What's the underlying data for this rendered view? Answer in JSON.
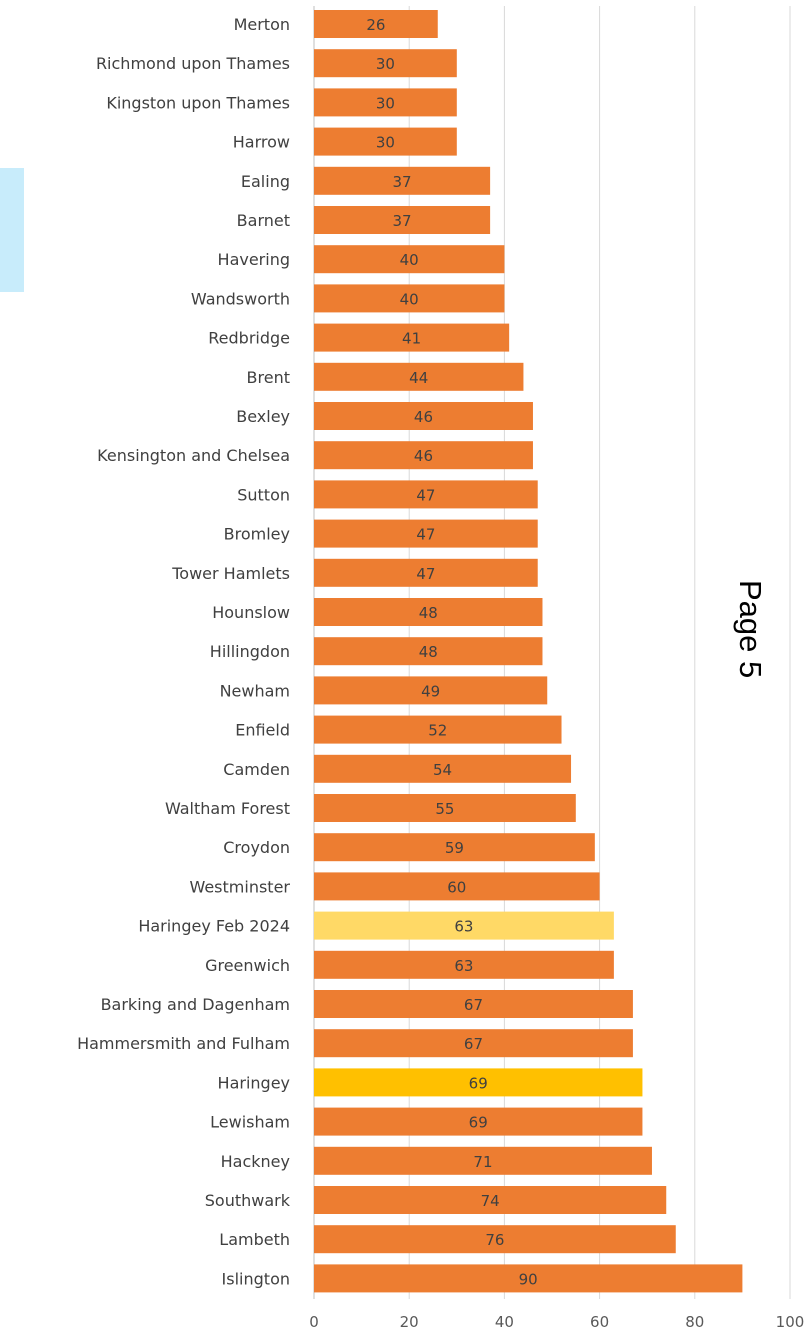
{
  "page": {
    "page_number": "Page 5"
  },
  "colors": {
    "bar_default": "#ed7d31",
    "bar_haringey": "#ffc000",
    "bar_haringey_feb_2024": "#ffd966",
    "side_tab": "#c8ecfb"
  },
  "chart_data": {
    "type": "bar",
    "orientation": "horizontal",
    "categories": [
      "Merton",
      "Richmond upon Thames",
      "Kingston upon Thames",
      "Harrow",
      "Ealing",
      "Barnet",
      "Havering",
      "Wandsworth",
      "Redbridge",
      "Brent",
      "Bexley",
      "Kensington and Chelsea",
      "Sutton",
      "Bromley",
      "Tower Hamlets",
      "Hounslow",
      "Hillingdon",
      "Newham",
      "Enfield",
      "Camden",
      "Waltham Forest",
      "Croydon",
      "Westminster",
      "Haringey Feb 2024",
      "Greenwich",
      "Barking and Dagenham",
      "Hammersmith and Fulham",
      "Haringey",
      "Lewisham",
      "Hackney",
      "Southwark",
      "Lambeth",
      "Islington"
    ],
    "values": [
      26,
      30,
      30,
      30,
      37,
      37,
      40,
      40,
      41,
      44,
      46,
      46,
      47,
      47,
      47,
      48,
      48,
      49,
      52,
      54,
      55,
      59,
      60,
      63,
      63,
      67,
      67,
      69,
      69,
      71,
      74,
      76,
      90
    ],
    "highlight": {
      "Haringey": "#ffc000",
      "Haringey Feb 2024": "#ffd966"
    },
    "xlim": [
      0,
      100
    ],
    "xticks": [
      0,
      20,
      40,
      60,
      80,
      100
    ],
    "grid": true,
    "data_labels": true
  }
}
